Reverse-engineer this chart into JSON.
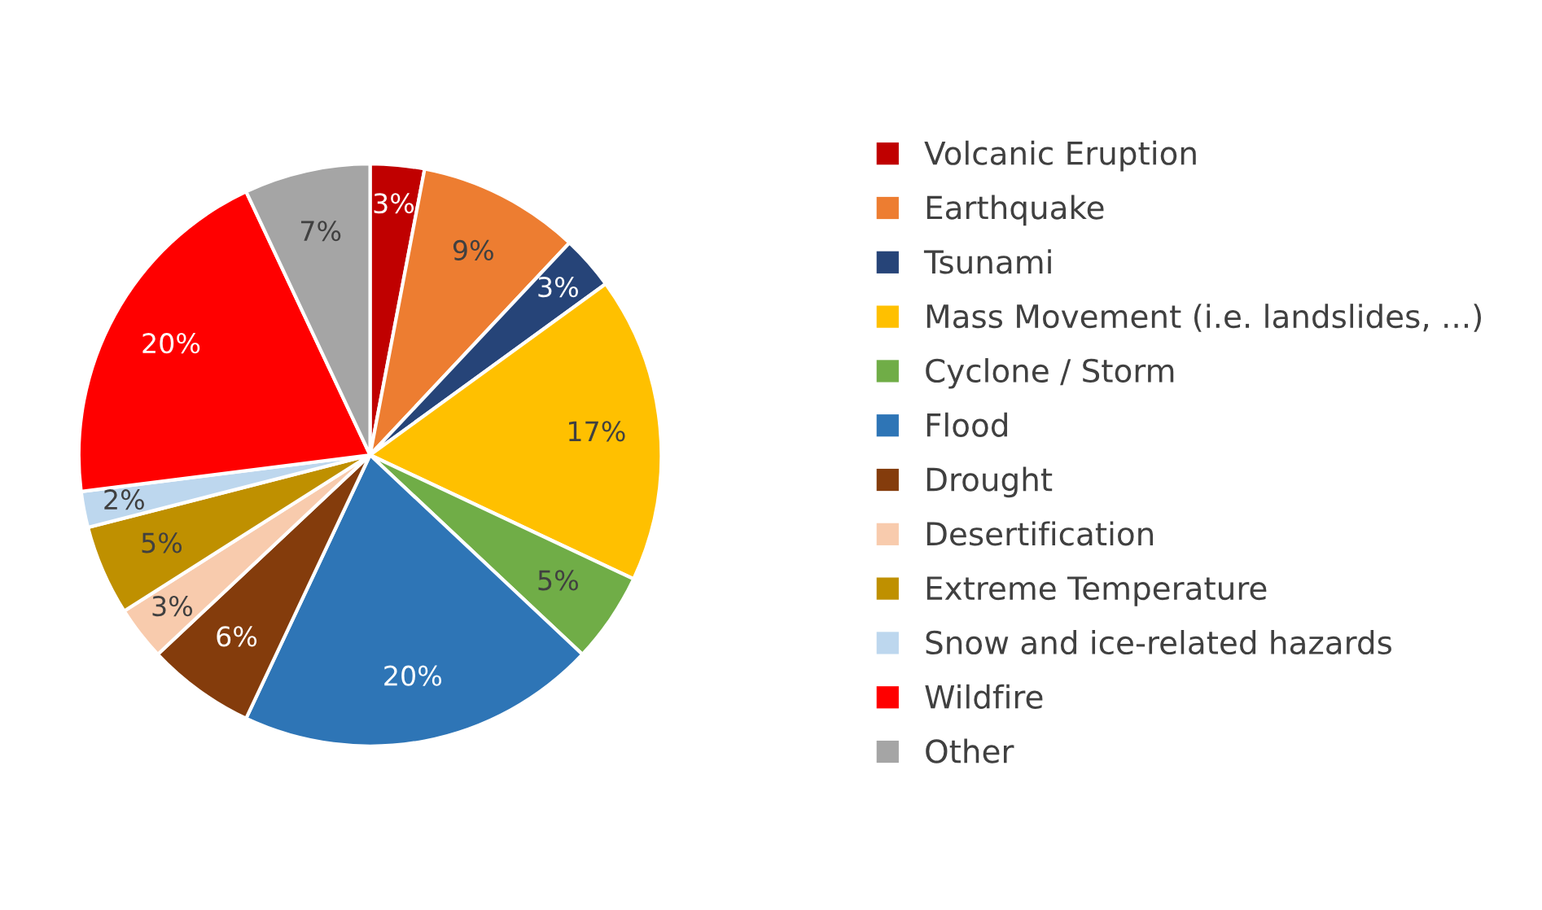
{
  "chart_data": {
    "type": "pie",
    "categories": [
      "Volcanic Eruption",
      "Earthquake",
      "Tsunami",
      "Mass Movement (i.e. landslides, ...)",
      "Cyclone / Storm",
      "Flood",
      "Drought",
      "Desertification",
      "Extreme Temperature",
      "Snow and ice-related hazards",
      "Wildfire",
      "Other"
    ],
    "values": [
      3,
      9,
      3,
      17,
      5,
      20,
      6,
      3,
      5,
      2,
      20,
      7
    ],
    "value_labels": [
      "3%",
      "9%",
      "3%",
      "17%",
      "5%",
      "20%",
      "6%",
      "3%",
      "5%",
      "2%",
      "20%",
      "7%"
    ],
    "colors": [
      "#c00000",
      "#ed7d31",
      "#264478",
      "#ffc000",
      "#70ad47",
      "#2e75b6",
      "#843c0c",
      "#f8cbad",
      "#bf9000",
      "#bdd7ee",
      "#ff0000",
      "#a5a5a5"
    ],
    "legend": "right"
  }
}
